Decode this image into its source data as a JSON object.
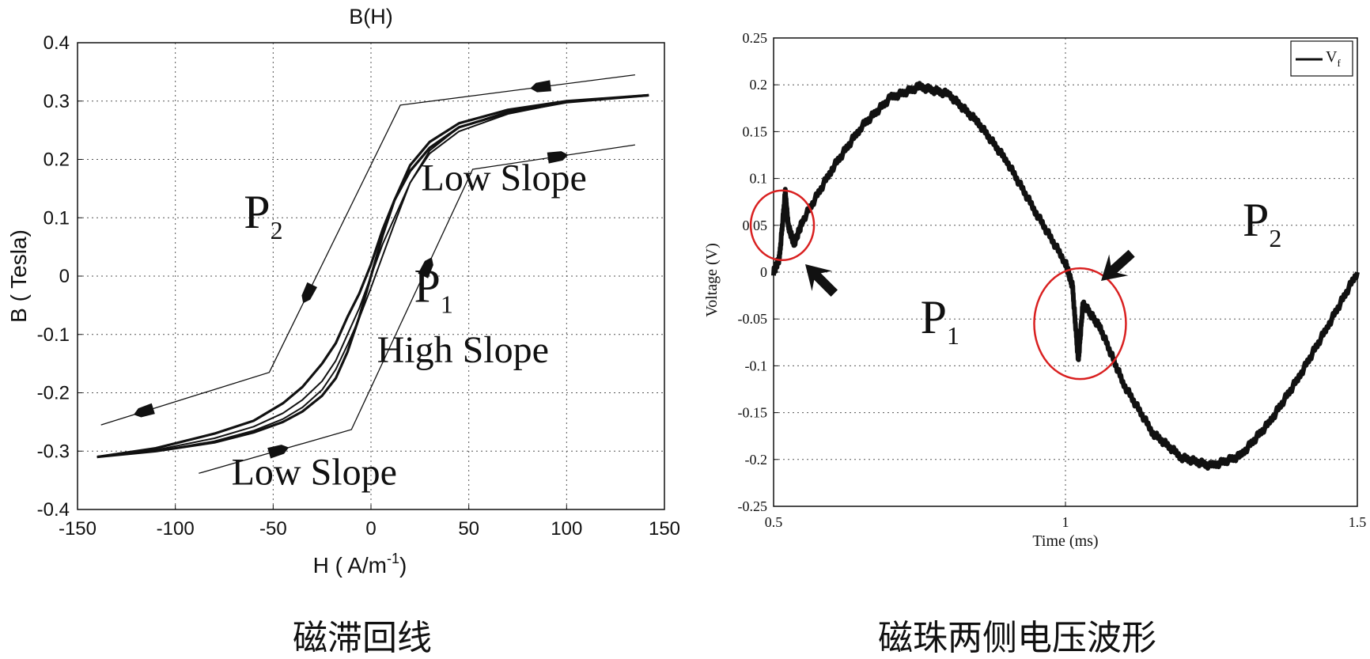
{
  "chart_data": [
    {
      "type": "line",
      "title": "B(H)",
      "xlabel": "H ( A/m",
      "xlabel_sup": "-1",
      "xlabel_close": ")",
      "ylabel": "B ( Tesla)",
      "xlim": [
        -150,
        150
      ],
      "ylim": [
        -0.4,
        0.4
      ],
      "xticks": [
        -150,
        -100,
        -50,
        0,
        50,
        100,
        150
      ],
      "yticks": [
        0.4,
        0.3,
        0.2,
        0.1,
        0,
        -0.1,
        -0.2,
        -0.3,
        -0.4
      ],
      "grid": true,
      "series": [
        {
          "x": [
            -140,
            -110,
            -80,
            -60,
            -45,
            -35,
            -25,
            -18,
            -12,
            -6,
            0,
            6,
            12,
            20,
            30,
            45,
            70,
            100,
            142
          ],
          "y": [
            -0.31,
            -0.3,
            -0.285,
            -0.268,
            -0.25,
            -0.232,
            -0.205,
            -0.175,
            -0.13,
            -0.07,
            0.0,
            0.07,
            0.13,
            0.19,
            0.23,
            0.262,
            0.285,
            0.3,
            0.31
          ]
        },
        {
          "x": [
            -140,
            -110,
            -80,
            -60,
            -45,
            -35,
            -25,
            -18,
            -12,
            -6,
            0,
            6,
            12,
            20,
            30,
            45,
            70,
            100,
            142
          ],
          "y": [
            -0.31,
            -0.298,
            -0.278,
            -0.258,
            -0.235,
            -0.212,
            -0.18,
            -0.145,
            -0.1,
            -0.055,
            0.0,
            0.055,
            0.1,
            0.16,
            0.21,
            0.248,
            0.278,
            0.298,
            0.31
          ]
        },
        {
          "x": [
            -140,
            -110,
            -80,
            -60,
            -45,
            -35,
            -25,
            -18,
            -12,
            -6,
            0,
            6,
            12,
            20,
            30,
            45,
            70,
            100,
            142
          ],
          "y": [
            -0.31,
            -0.295,
            -0.27,
            -0.248,
            -0.218,
            -0.19,
            -0.15,
            -0.115,
            -0.07,
            -0.03,
            0.02,
            0.08,
            0.13,
            0.18,
            0.22,
            0.255,
            0.28,
            0.298,
            0.31
          ]
        },
        {
          "x": [
            -140,
            -110,
            -80,
            -60,
            -45,
            -35,
            -25,
            -18,
            -12,
            -6,
            0,
            6,
            12,
            20,
            30,
            45,
            70,
            100,
            142
          ],
          "y": [
            -0.31,
            -0.3,
            -0.283,
            -0.265,
            -0.245,
            -0.225,
            -0.195,
            -0.16,
            -0.118,
            -0.072,
            -0.02,
            0.035,
            0.09,
            0.16,
            0.215,
            0.255,
            0.282,
            0.3,
            0.31
          ]
        }
      ],
      "guide_lines": [
        {
          "x": [
            -138,
            -52,
            15,
            135
          ],
          "y": [
            -0.255,
            -0.165,
            0.293,
            0.345
          ]
        },
        {
          "x": [
            -88,
            -10,
            52,
            135
          ],
          "y": [
            -0.338,
            -0.263,
            0.183,
            0.225
          ]
        }
      ],
      "annotations": [
        {
          "text": "Low Slope",
          "x": 68,
          "y": 0.147
        },
        {
          "text": "High Slope",
          "x": 47,
          "y": -0.148
        },
        {
          "text": "Low Slope",
          "x": -29,
          "y": -0.357
        },
        {
          "text": "P",
          "sub": "2",
          "x": -55,
          "y": 0.083
        },
        {
          "text": "P",
          "sub": "1",
          "x": 32,
          "y": -0.044
        }
      ]
    },
    {
      "type": "line",
      "xlabel": "Time (ms)",
      "ylabel": "Voltage (V)",
      "xlim": [
        0.5,
        1.5
      ],
      "ylim": [
        -0.25,
        0.25
      ],
      "xticks": [
        0.5,
        1,
        1.5
      ],
      "yticks": [
        0.25,
        0.2,
        0.15,
        0.1,
        0.05,
        0,
        -0.05,
        -0.1,
        -0.15,
        -0.2,
        -0.25
      ],
      "grid": true,
      "legend": {
        "label": "V",
        "sub": "f",
        "placement": "top-right"
      },
      "series": [
        {
          "name": "Vf",
          "x": [
            0.5,
            0.51,
            0.52,
            0.525,
            0.535,
            0.55,
            0.6,
            0.65,
            0.7,
            0.75,
            0.8,
            0.85,
            0.9,
            0.95,
            1.0,
            1.012,
            1.022,
            1.03,
            1.06,
            1.1,
            1.15,
            1.2,
            1.25,
            1.3,
            1.35,
            1.4,
            1.45,
            1.5
          ],
          "y": [
            0.0,
            0.015,
            0.085,
            0.05,
            0.03,
            0.055,
            0.11,
            0.155,
            0.186,
            0.198,
            0.19,
            0.16,
            0.118,
            0.063,
            0.01,
            -0.015,
            -0.095,
            -0.033,
            -0.06,
            -0.12,
            -0.172,
            -0.198,
            -0.207,
            -0.196,
            -0.16,
            -0.112,
            -0.057,
            0.0
          ]
        }
      ],
      "annotations": [
        {
          "text": "P",
          "sub": "1",
          "x": 0.785,
          "y": -0.065
        },
        {
          "text": "P",
          "sub": "2",
          "x": 1.337,
          "y": 0.039
        }
      ],
      "circles": [
        {
          "cx": 0.515,
          "cy": 0.05
        },
        {
          "cx": 1.025,
          "cy": -0.055
        }
      ]
    }
  ],
  "captions": {
    "left": "磁滞回线",
    "right": "磁珠两侧电压波形"
  }
}
